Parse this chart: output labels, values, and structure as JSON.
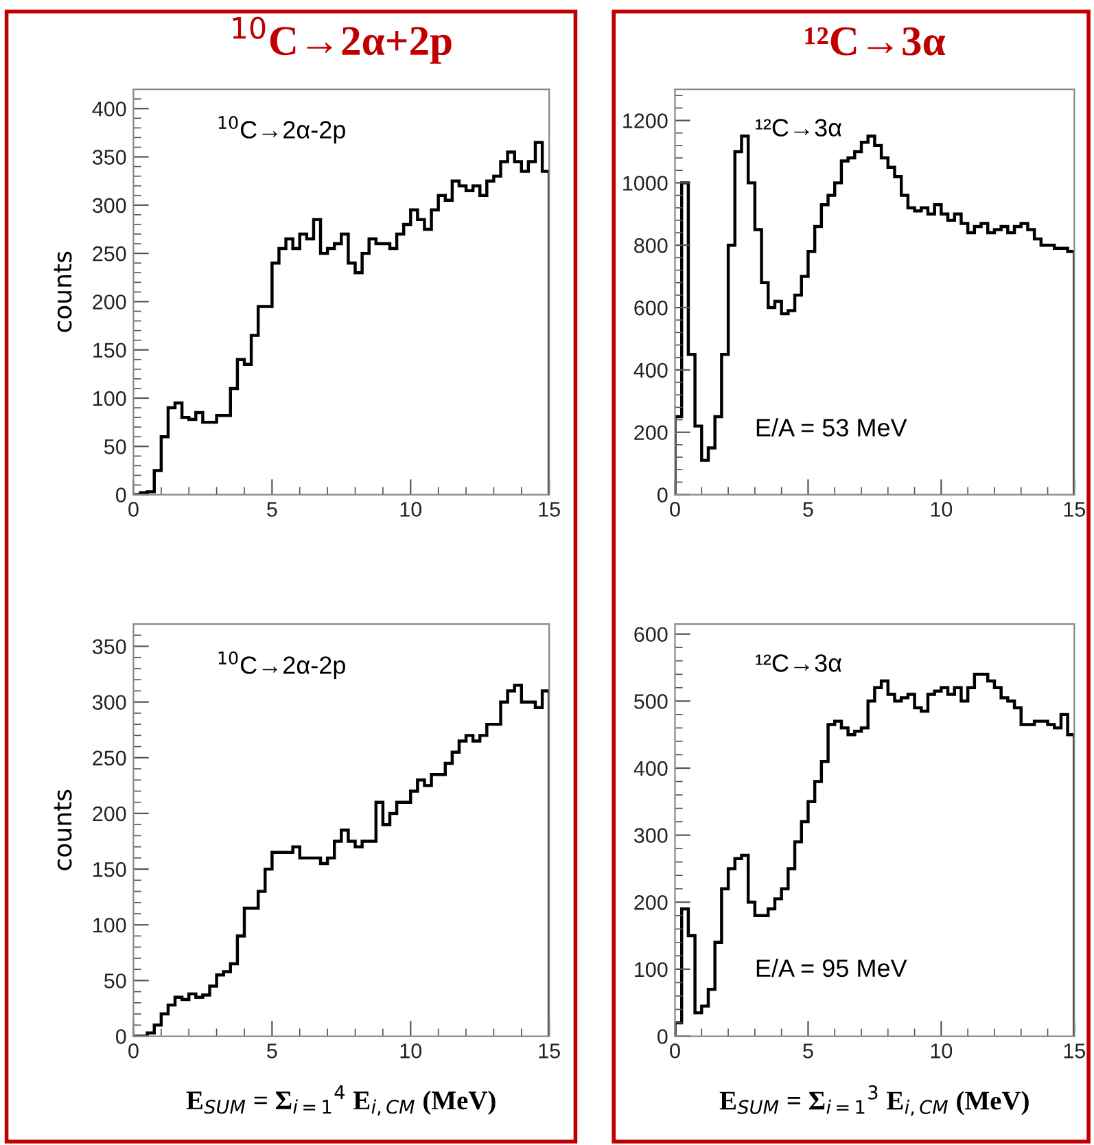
{
  "chart_data": [
    {
      "type": "histogram",
      "title": "$^{10}$C→2α+2p",
      "ylabel": "counts",
      "annotations": [
        "$^{10}$C→2α-2p"
      ],
      "color": "#000000",
      "xlim": [
        0,
        15
      ],
      "xticks": [
        0,
        5,
        10,
        15
      ],
      "ylim": [
        0,
        420
      ],
      "yticks": [
        0,
        50,
        100,
        150,
        200,
        250,
        300,
        350,
        400
      ],
      "bins": [
        0,
        0.25,
        0.5,
        0.75,
        1,
        1.25,
        1.5,
        1.75,
        2,
        2.25,
        2.5,
        2.75,
        3,
        3.25,
        3.5,
        3.75,
        4,
        4.25,
        4.5,
        4.75,
        5,
        5.25,
        5.5,
        5.75,
        6,
        6.25,
        6.5,
        6.75,
        7,
        7.25,
        7.5,
        7.75,
        8,
        8.25,
        8.5,
        8.75,
        9,
        9.25,
        9.5,
        9.75,
        10,
        10.25,
        10.5,
        10.75,
        11,
        11.25,
        11.5,
        11.75,
        12,
        12.25,
        12.5,
        12.75,
        13,
        13.25,
        13.5,
        13.75,
        14,
        14.25,
        14.5,
        14.75,
        15
      ],
      "values": [
        0,
        2,
        3,
        25,
        60,
        90,
        95,
        80,
        78,
        85,
        75,
        75,
        82,
        82,
        110,
        140,
        135,
        165,
        195,
        195,
        240,
        255,
        265,
        255,
        270,
        265,
        285,
        250,
        255,
        260,
        270,
        240,
        230,
        250,
        265,
        260,
        260,
        255,
        270,
        280,
        295,
        285,
        275,
        295,
        310,
        305,
        325,
        320,
        315,
        320,
        310,
        325,
        330,
        345,
        355,
        345,
        335,
        345,
        365,
        335
      ]
    },
    {
      "type": "histogram",
      "title": "¹²C→3α",
      "annotations": [
        "¹²C→3α",
        "E/A = 53 MeV"
      ],
      "color": "#000000",
      "xlim": [
        0,
        15
      ],
      "xticks": [
        0,
        5,
        10,
        15
      ],
      "ylim": [
        0,
        1300
      ],
      "yticks": [
        0,
        200,
        400,
        600,
        800,
        1000,
        1200
      ],
      "bins": [
        0,
        0.25,
        0.5,
        0.75,
        1,
        1.25,
        1.5,
        1.75,
        2,
        2.25,
        2.5,
        2.75,
        3,
        3.25,
        3.5,
        3.75,
        4,
        4.25,
        4.5,
        4.75,
        5,
        5.25,
        5.5,
        5.75,
        6,
        6.25,
        6.5,
        6.75,
        7,
        7.25,
        7.5,
        7.75,
        8,
        8.25,
        8.5,
        8.75,
        9,
        9.25,
        9.5,
        9.75,
        10,
        10.25,
        10.5,
        10.75,
        11,
        11.25,
        11.5,
        11.75,
        12,
        12.25,
        12.5,
        12.75,
        13,
        13.25,
        13.5,
        13.75,
        14,
        14.25,
        14.5,
        14.75,
        15
      ],
      "values": [
        250,
        1000,
        450,
        220,
        110,
        150,
        250,
        450,
        800,
        1100,
        1150,
        1000,
        850,
        680,
        600,
        620,
        580,
        590,
        640,
        700,
        780,
        860,
        930,
        960,
        1000,
        1070,
        1080,
        1100,
        1130,
        1150,
        1120,
        1080,
        1050,
        1020,
        960,
        920,
        910,
        920,
        900,
        930,
        900,
        880,
        900,
        870,
        840,
        860,
        870,
        840,
        850,
        860,
        840,
        860,
        870,
        850,
        820,
        800,
        800,
        790,
        790,
        780
      ]
    },
    {
      "type": "histogram",
      "ylabel": "counts",
      "xlabel": "E$_{SUM}$ = Σ$_{i=1}$$^{4}$ E$_{i,CM}$ (MeV)",
      "annotations": [
        "$^{10}$C→2α-2p"
      ],
      "color": "#000000",
      "xlim": [
        0,
        15
      ],
      "xticks": [
        0,
        5,
        10,
        15
      ],
      "ylim": [
        0,
        370
      ],
      "yticks": [
        0,
        50,
        100,
        150,
        200,
        250,
        300,
        350
      ],
      "bins": [
        0,
        0.25,
        0.5,
        0.75,
        1,
        1.25,
        1.5,
        1.75,
        2,
        2.25,
        2.5,
        2.75,
        3,
        3.25,
        3.5,
        3.75,
        4,
        4.25,
        4.5,
        4.75,
        5,
        5.25,
        5.5,
        5.75,
        6,
        6.25,
        6.5,
        6.75,
        7,
        7.25,
        7.5,
        7.75,
        8,
        8.25,
        8.5,
        8.75,
        9,
        9.25,
        9.5,
        9.75,
        10,
        10.25,
        10.5,
        10.75,
        11,
        11.25,
        11.5,
        11.75,
        12,
        12.25,
        12.5,
        12.75,
        13,
        13.25,
        13.5,
        13.75,
        14,
        14.25,
        14.5,
        14.75,
        15
      ],
      "values": [
        0,
        0,
        3,
        10,
        20,
        28,
        35,
        33,
        38,
        35,
        37,
        45,
        55,
        58,
        65,
        90,
        115,
        115,
        130,
        150,
        165,
        165,
        165,
        170,
        160,
        160,
        160,
        155,
        160,
        175,
        185,
        175,
        170,
        175,
        175,
        210,
        190,
        200,
        210,
        210,
        220,
        230,
        225,
        235,
        235,
        245,
        255,
        265,
        270,
        265,
        270,
        280,
        280,
        300,
        310,
        315,
        300,
        300,
        295,
        310
      ]
    },
    {
      "type": "histogram",
      "xlabel": "E$_{SUM}$ = Σ$_{i=1}$$^{3}$ E$_{i,CM}$ (MeV)",
      "annotations": [
        "¹²C→3α",
        "E/A = 95 MeV"
      ],
      "color": "#000000",
      "xlim": [
        0,
        15
      ],
      "xticks": [
        0,
        5,
        10,
        15
      ],
      "ylim": [
        0,
        615
      ],
      "yticks": [
        0,
        100,
        200,
        300,
        400,
        500,
        600
      ],
      "bins": [
        0,
        0.25,
        0.5,
        0.75,
        1,
        1.25,
        1.5,
        1.75,
        2,
        2.25,
        2.5,
        2.75,
        3,
        3.25,
        3.5,
        3.75,
        4,
        4.25,
        4.5,
        4.75,
        5,
        5.25,
        5.5,
        5.75,
        6,
        6.25,
        6.5,
        6.75,
        7,
        7.25,
        7.5,
        7.75,
        8,
        8.25,
        8.5,
        8.75,
        9,
        9.25,
        9.5,
        9.75,
        10,
        10.25,
        10.5,
        10.75,
        11,
        11.25,
        11.5,
        11.75,
        12,
        12.25,
        12.5,
        12.75,
        13,
        13.25,
        13.5,
        13.75,
        14,
        14.25,
        14.5,
        14.75,
        15
      ],
      "values": [
        20,
        190,
        150,
        35,
        45,
        70,
        140,
        220,
        250,
        265,
        270,
        200,
        180,
        180,
        190,
        205,
        220,
        250,
        290,
        320,
        350,
        380,
        410,
        465,
        470,
        460,
        450,
        455,
        460,
        500,
        520,
        530,
        510,
        500,
        505,
        510,
        490,
        485,
        510,
        515,
        520,
        510,
        520,
        500,
        520,
        540,
        540,
        530,
        520,
        505,
        500,
        490,
        465,
        465,
        470,
        470,
        465,
        460,
        480,
        450
      ]
    }
  ]
}
